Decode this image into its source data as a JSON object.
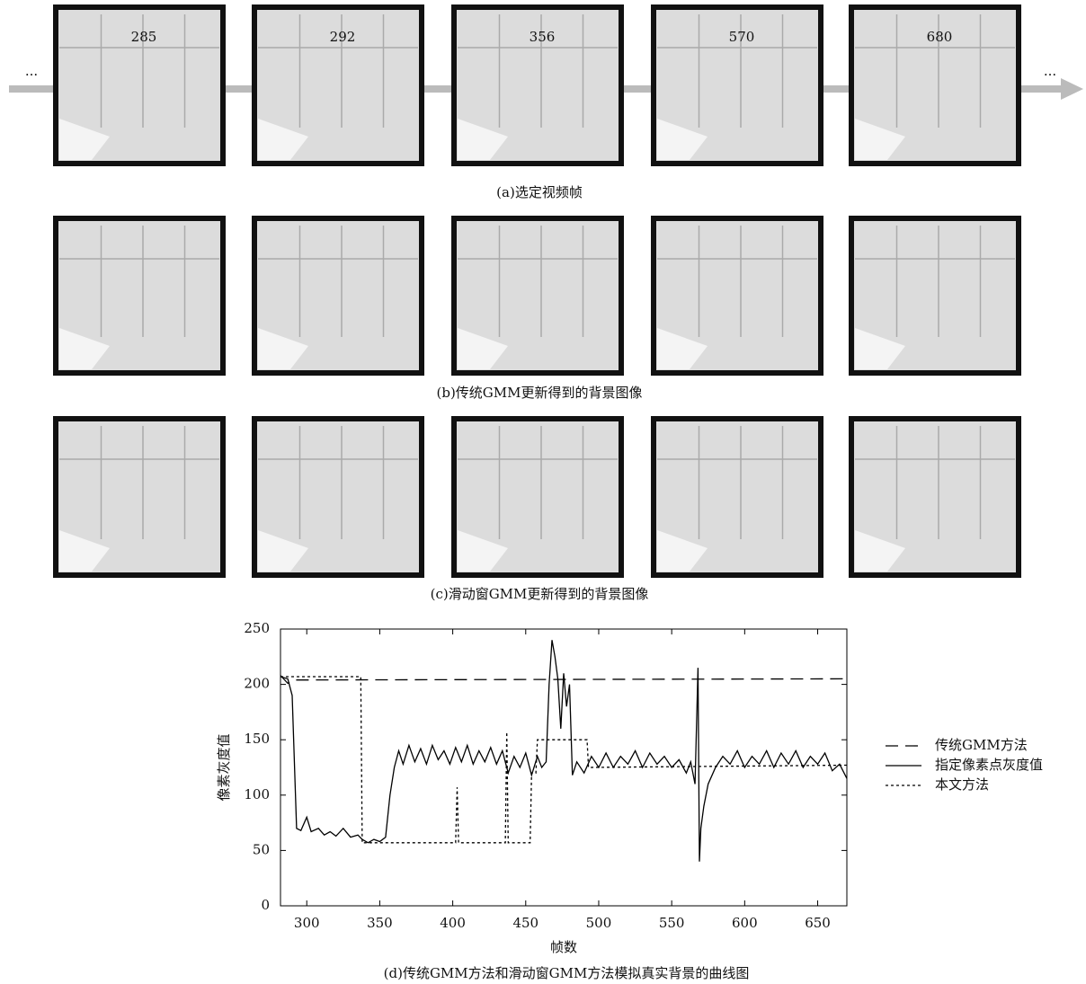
{
  "figure": {
    "ellipsis": "...",
    "frame_numbers": [
      "285",
      "292",
      "356",
      "570",
      "680"
    ],
    "captions": [
      "(a)选定视频帧",
      "(b)传统GMM更新得到的背景图像",
      "(c)滑动窗GMM更新得到的背景图像",
      "(d)传统GMM方法和滑动窗GMM方法模拟真实背景的曲线图"
    ]
  },
  "chart_data": {
    "type": "line",
    "x_label": "帧数",
    "y_label": "像素灰度值",
    "xlim": [
      282,
      670
    ],
    "xticks": [
      300,
      350,
      400,
      450,
      500,
      550,
      600,
      650
    ],
    "ylim": [
      0,
      250
    ],
    "yticks": [
      0,
      50,
      100,
      150,
      200,
      250
    ],
    "grid": false,
    "legend": "right",
    "series": [
      {
        "name": "传统GMM方法",
        "color": "#000000",
        "line_style": "dashed",
        "x": [
          282,
          287,
          292,
          670
        ],
        "values": [
          208,
          201,
          204,
          205
        ]
      },
      {
        "name": "指定像素点灰度值",
        "color": "#000000",
        "line_style": "solid",
        "x": [
          282,
          287,
          290,
          293,
          296,
          300,
          303,
          308,
          312,
          316,
          320,
          325,
          330,
          335,
          338,
          342,
          346,
          350,
          354,
          357,
          360,
          363,
          366,
          370,
          374,
          378,
          382,
          386,
          390,
          394,
          398,
          402,
          406,
          410,
          414,
          418,
          422,
          426,
          430,
          434,
          438,
          442,
          446,
          450,
          454,
          458,
          461,
          464,
          466,
          468,
          470,
          472,
          474,
          476,
          478,
          480,
          482,
          485,
          490,
          495,
          500,
          505,
          510,
          515,
          520,
          525,
          530,
          535,
          540,
          545,
          550,
          555,
          560,
          563,
          566,
          568,
          569,
          570,
          572,
          575,
          580,
          585,
          590,
          595,
          600,
          605,
          610,
          615,
          620,
          625,
          630,
          635,
          640,
          645,
          650,
          655,
          660,
          665,
          670
        ],
        "values": [
          207,
          205,
          190,
          70,
          68,
          80,
          67,
          70,
          64,
          67,
          63,
          70,
          62,
          64,
          60,
          57,
          60,
          58,
          62,
          100,
          125,
          140,
          128,
          145,
          130,
          142,
          128,
          145,
          132,
          140,
          128,
          143,
          130,
          145,
          128,
          140,
          130,
          143,
          128,
          140,
          120,
          135,
          125,
          138,
          118,
          135,
          125,
          130,
          200,
          240,
          225,
          205,
          160,
          210,
          180,
          200,
          118,
          130,
          120,
          135,
          125,
          138,
          125,
          135,
          128,
          140,
          125,
          138,
          128,
          135,
          125,
          132,
          120,
          130,
          110,
          215,
          40,
          70,
          90,
          110,
          125,
          135,
          128,
          140,
          125,
          135,
          128,
          140,
          125,
          138,
          128,
          140,
          125,
          135,
          128,
          138,
          122,
          128,
          115
        ]
      },
      {
        "name": "本文方法",
        "color": "#000000",
        "line_style": "dotted",
        "x": [
          282,
          337,
          338,
          402,
          403,
          404,
          436,
          437,
          438,
          453,
          454,
          457,
          458,
          492,
          493,
          670
        ],
        "values": [
          207,
          207,
          57,
          57,
          107,
          57,
          57,
          157,
          57,
          57,
          120,
          120,
          150,
          150,
          125,
          127
        ]
      }
    ]
  }
}
